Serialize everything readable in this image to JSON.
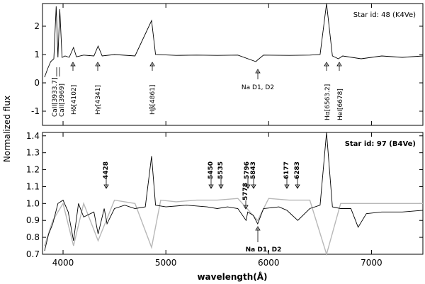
{
  "chart_data": [
    {
      "type": "line",
      "panel": "top",
      "star_label": "Star id: 48 (K4Ve)",
      "ylim": [
        -1.5,
        2.8
      ],
      "xlim": [
        3800,
        7500
      ],
      "yticks": [
        -1,
        0,
        1,
        2
      ],
      "grid": false,
      "series": [
        {
          "color": "#000000",
          "x": [
            3820,
            3850,
            3880,
            3910,
            3933,
            3950,
            3968,
            3990,
            4020,
            4060,
            4102,
            4130,
            4200,
            4300,
            4341,
            4380,
            4500,
            4700,
            4861,
            4900,
            5100,
            5300,
            5500,
            5700,
            5875,
            5890,
            5950,
            6200,
            6400,
            6500,
            6563,
            6620,
            6678,
            6720,
            6900,
            7100,
            7300,
            7500
          ],
          "y": [
            0.2,
            0.5,
            0.75,
            0.85,
            2.7,
            0.9,
            2.6,
            0.9,
            0.95,
            0.9,
            1.25,
            0.92,
            0.98,
            0.95,
            1.3,
            0.95,
            1.0,
            0.95,
            2.2,
            1.0,
            0.97,
            0.98,
            0.97,
            0.98,
            0.75,
            0.8,
            0.98,
            0.97,
            0.98,
            1.0,
            2.8,
            0.95,
            0.85,
            0.95,
            0.85,
            0.95,
            0.9,
            0.95
          ]
        }
      ],
      "annotations": [
        {
          "text": "CaII[3933.7]",
          "x": 3933.7
        },
        {
          "text": "CaII[3969]",
          "x": 3969
        },
        {
          "text": "Hδ[4102]",
          "x": 4102
        },
        {
          "text": "Hγ[4341]",
          "x": 4341
        },
        {
          "text": "Hβ[4861]",
          "x": 4861
        },
        {
          "text": "Na D1, D2",
          "x": 5893
        },
        {
          "text": "Hα[6563.2]",
          "x": 6563.2
        },
        {
          "text": "HeI[6678]",
          "x": 6678
        }
      ]
    },
    {
      "type": "line",
      "panel": "bottom",
      "star_label": "Star id: 97 (B4Ve)",
      "xlabel": "wavelength(Å)",
      "ylim": [
        0.7,
        1.42
      ],
      "xlim": [
        3800,
        7500
      ],
      "yticks": [
        0.7,
        0.8,
        0.9,
        1.0,
        1.1,
        1.2,
        1.3,
        1.4
      ],
      "xticks": [
        4000,
        5000,
        6000,
        7000
      ],
      "grid": false,
      "series": [
        {
          "color": "#000000",
          "x": [
            3820,
            3860,
            3900,
            3950,
            4000,
            4050,
            4102,
            4150,
            4200,
            4300,
            4341,
            4400,
            4428,
            4500,
            4600,
            4700,
            4800,
            4861,
            4900,
            5000,
            5200,
            5400,
            5500,
            5600,
            5700,
            5780,
            5797,
            5850,
            5893,
            5950,
            6100,
            6177,
            6283,
            6400,
            6500,
            6563,
            6620,
            6700,
            6800,
            6870,
            6950,
            7100,
            7300,
            7500
          ],
          "y": [
            0.72,
            0.82,
            0.88,
            1.0,
            1.02,
            0.95,
            0.78,
            1.0,
            0.92,
            0.95,
            0.82,
            0.97,
            0.88,
            0.97,
            0.99,
            0.97,
            0.98,
            1.28,
            0.99,
            0.98,
            0.99,
            0.98,
            0.97,
            0.98,
            0.97,
            0.9,
            0.95,
            0.93,
            0.88,
            0.97,
            0.98,
            0.96,
            0.9,
            0.97,
            0.99,
            1.42,
            0.98,
            0.97,
            0.97,
            0.86,
            0.94,
            0.95,
            0.95,
            0.96
          ]
        },
        {
          "color": "#b8b8b8",
          "x": [
            3820,
            3900,
            4000,
            4102,
            4200,
            4341,
            4500,
            4700,
            4861,
            4950,
            5100,
            5300,
            5500,
            5700,
            5893,
            6000,
            6200,
            6400,
            6563,
            6700,
            6900,
            7100,
            7300,
            7500
          ],
          "y": [
            0.75,
            0.9,
            1.0,
            0.75,
            1.0,
            0.78,
            1.02,
            1.0,
            0.74,
            1.02,
            1.01,
            1.02,
            1.02,
            1.03,
            0.9,
            1.03,
            1.02,
            1.02,
            0.7,
            1.0,
            1.0,
            1.0,
            1.0,
            1.0
          ]
        }
      ],
      "annotations": [
        {
          "text": "4428",
          "x": 4428
        },
        {
          "text": "5450",
          "x": 5450
        },
        {
          "text": "5535",
          "x": 5535
        },
        {
          "text": "5778",
          "x": 5778
        },
        {
          "text": "5796",
          "x": 5796
        },
        {
          "text": "5843",
          "x": 5843
        },
        {
          "text": "6177",
          "x": 6177
        },
        {
          "text": "6283",
          "x": 6283
        },
        {
          "text": "Na D1, D2",
          "x": 5893
        }
      ]
    }
  ],
  "shared": {
    "ylabel": "Normalized flux"
  }
}
